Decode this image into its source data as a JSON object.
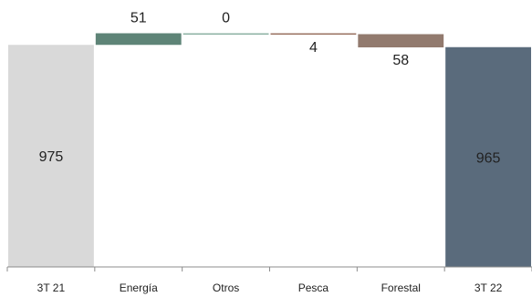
{
  "chart_data": {
    "type": "bar",
    "subtype": "waterfall",
    "title": "",
    "xlabel": "",
    "ylabel": "",
    "grid": false,
    "legend": "none",
    "categories": [
      "3T 21",
      "Energía",
      "Otros",
      "Pesca",
      "Forestal",
      "3T 22"
    ],
    "values": [
      975,
      51,
      0,
      -4,
      -58,
      965
    ],
    "data_labels": [
      "975",
      "51",
      "0",
      "4",
      "58",
      "965"
    ],
    "bar_kinds": [
      "total",
      "delta",
      "delta",
      "delta",
      "delta",
      "total"
    ],
    "colors": [
      "#d9d9d9",
      "#5e8477",
      "#8fb3a5",
      "#9b7464",
      "#927a6e",
      "#5a6b7c"
    ]
  }
}
